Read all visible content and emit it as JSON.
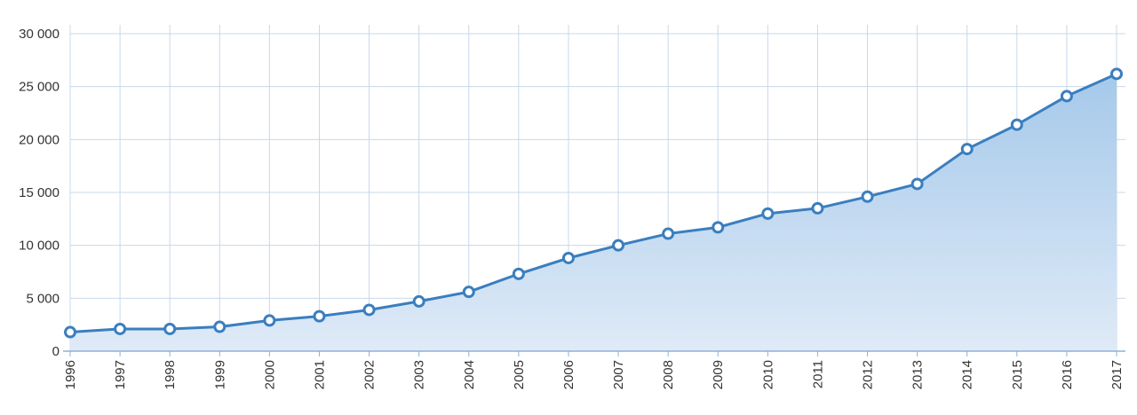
{
  "chart_data": {
    "type": "area",
    "title": "",
    "xlabel": "",
    "ylabel": "",
    "x": [
      "1996",
      "1997",
      "1998",
      "1999",
      "2000",
      "2001",
      "2002",
      "2003",
      "2004",
      "2005",
      "2006",
      "2007",
      "2008",
      "2009",
      "2010",
      "2011",
      "2012",
      "2013",
      "2014",
      "2015",
      "2016",
      "2017"
    ],
    "series": [
      {
        "values": [
          1800,
          2100,
          2100,
          2300,
          2900,
          3300,
          3900,
          4700,
          5600,
          7300,
          8800,
          10000,
          11100,
          11700,
          13000,
          13500,
          14600,
          15800,
          19100,
          21400,
          24100,
          26200
        ]
      }
    ],
    "ylim": [
      0,
      30000
    ],
    "y_ticks": [
      0,
      5000,
      10000,
      15000,
      20000,
      25000,
      30000
    ],
    "y_tick_labels": [
      "0",
      "5 000",
      "10 000",
      "15 000",
      "20 000",
      "25 000",
      "30 000"
    ],
    "grid": true,
    "legend": "none",
    "colors": {
      "line": "#3a7ebf",
      "fill_top": "#a5c9ea",
      "fill_bottom": "#dfeaf7",
      "grid": "#c9d8ea",
      "axis": "#8fb0d6",
      "marker_fill": "#ffffff"
    }
  }
}
